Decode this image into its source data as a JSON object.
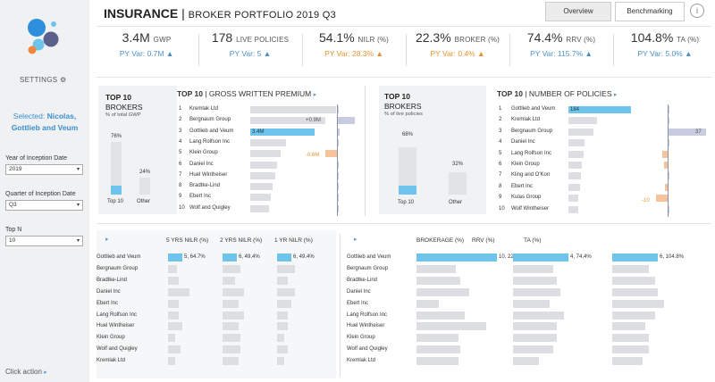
{
  "sidebar": {
    "settings_label": "SETTINGS",
    "selected_label": "Selected:",
    "selected_value": "Nicolas, Gottlieb and Veum",
    "filters": [
      {
        "label": "Year of Inception Date",
        "value": "2019"
      },
      {
        "label": "Quarter of Inception Date",
        "value": "Q3"
      },
      {
        "label": "Top N",
        "value": "10"
      }
    ],
    "click_action": "Click action"
  },
  "header": {
    "title": "INSURANCE",
    "separator": "|",
    "subtitle": "BROKER PORTFOLIO 2019 Q3",
    "overview_label": "Overview",
    "benchmarking_label": "Benchmarking",
    "info_symbol": "i"
  },
  "kpis": [
    {
      "value": "3.4M",
      "unit": "GWP",
      "var": "PY Var: 0.7M",
      "color": "#4a90c8"
    },
    {
      "value": "178",
      "unit": "LIVE POLICIES",
      "var": "PY Var: 5",
      "color": "#4a90c8"
    },
    {
      "value": "54.1%",
      "unit": "NILR (%)",
      "var": "PY Var: 28.3%",
      "color": "#e8922e"
    },
    {
      "value": "22.3%",
      "unit": "BROKER (%)",
      "var": "PY Var: 0.4%",
      "color": "#e8922e"
    },
    {
      "value": "74.4%",
      "unit": "RRV (%)",
      "var": "PY Var: 115.7%",
      "color": "#4a90c8"
    },
    {
      "value": "104.8%",
      "unit": "TA (%)",
      "var": "PY Var: 5.0%",
      "color": "#4a90c8"
    }
  ],
  "top10_gwp": {
    "title": "TOP 10",
    "title2": "BROKERS",
    "sub": "% of total GWP",
    "top_pct": "76%",
    "other_pct": "24%",
    "top_value": 0.76,
    "other_value": 0.24,
    "top_label": "Top 10",
    "other_label": "Other"
  },
  "top10_policies": {
    "title": "TOP 10",
    "title2": "BROKERS",
    "sub": "% of live policies",
    "top_pct": "68%",
    "other_pct": "32%",
    "top_value": 0.68,
    "other_value": 0.32,
    "top_label": "Top 10",
    "other_label": "Other"
  },
  "gwp_chart": {
    "title_bold": "TOP 10",
    "title_rest": "GROSS WRITTEN PREMIUM",
    "highlight_label": "3.4M",
    "plus_label": "+0.9M",
    "minus_label": "-0.6M",
    "rows": [
      {
        "rank": "1",
        "name": "Kremlak Ltd",
        "value": 1.0,
        "var": 0.06
      },
      {
        "rank": "2",
        "name": "Bergnaum Group",
        "value": 0.88,
        "var": 0.9
      },
      {
        "rank": "3",
        "name": "Gottlieb and Veum",
        "value": 0.75,
        "var": 0.12,
        "highlight": true
      },
      {
        "rank": "4",
        "name": "Lang Rolfson Inc",
        "value": 0.42,
        "var": 0.06
      },
      {
        "rank": "5",
        "name": "Klein Group",
        "value": 0.35,
        "var": -0.6
      },
      {
        "rank": "6",
        "name": "Daniel Inc",
        "value": 0.31,
        "var": 0.05
      },
      {
        "rank": "7",
        "name": "Huel Wintheiser",
        "value": 0.29,
        "var": 0.08
      },
      {
        "rank": "8",
        "name": "Bradtke-Lind",
        "value": 0.26,
        "var": 0.05
      },
      {
        "rank": "9",
        "name": "Ebert Inc",
        "value": 0.24,
        "var": 0.04
      },
      {
        "rank": "10",
        "name": "Wolf and Quigley",
        "value": 0.22,
        "var": 0.04
      }
    ]
  },
  "policies_chart": {
    "title_bold": "TOP 10",
    "title_rest": "NUMBER OF POLICIES",
    "highlight_label": "184",
    "plus_label": "37",
    "minus_label": "-10",
    "rows": [
      {
        "rank": "1",
        "name": "Gottlieb and Veum",
        "value": 1.0,
        "var": 0.05,
        "highlight": true
      },
      {
        "rank": "2",
        "name": "Kremlak Ltd",
        "value": 0.46,
        "var": 0.05
      },
      {
        "rank": "3",
        "name": "Bergnaum Group",
        "value": 0.4,
        "var": 1.0
      },
      {
        "rank": "4",
        "name": "Daniel Inc",
        "value": 0.26,
        "var": 0.05
      },
      {
        "rank": "5",
        "name": "Lang Rolfson Inc",
        "value": 0.24,
        "var": -0.15
      },
      {
        "rank": "6",
        "name": "Klein Group",
        "value": 0.22,
        "var": -0.1
      },
      {
        "rank": "7",
        "name": "Kling and O'Kon",
        "value": 0.2,
        "var": 0.05
      },
      {
        "rank": "8",
        "name": "Ebert Inc",
        "value": 0.18,
        "var": -0.08
      },
      {
        "rank": "9",
        "name": "Kulas Group",
        "value": 0.16,
        "var": -0.3
      },
      {
        "rank": "10",
        "name": "Wolf Wintheiser",
        "value": 0.15,
        "var": 0.05
      }
    ]
  },
  "nilr_table": {
    "arrow": "▸",
    "col1": "5 YRS NILR (%)",
    "col2": "2 YRS NILR (%)",
    "col3": "1 YR NILR (%)",
    "labels": [
      "5, 64.7%",
      "6, 49.4%",
      "6, 49.4%"
    ],
    "rows": [
      {
        "name": "Gottlieb and Veum",
        "v": [
          0.4,
          0.4,
          0.4
        ],
        "highlight": true
      },
      {
        "name": "Bergnaum Group",
        "v": [
          0.25,
          0.5,
          0.5
        ]
      },
      {
        "name": "Bradtke-Lind",
        "v": [
          0.3,
          0.35,
          0.3
        ]
      },
      {
        "name": "Daniel Inc",
        "v": [
          0.6,
          0.6,
          0.5
        ]
      },
      {
        "name": "Ebert Inc",
        "v": [
          0.3,
          0.45,
          0.4
        ]
      },
      {
        "name": "Lang Rolfson Inc",
        "v": [
          0.3,
          0.6,
          0.3
        ]
      },
      {
        "name": "Huel Wintheiser",
        "v": [
          0.4,
          0.45,
          0.3
        ]
      },
      {
        "name": "Klein Group",
        "v": [
          0.2,
          0.5,
          0.2
        ]
      },
      {
        "name": "Wolf and Quigley",
        "v": [
          0.35,
          0.5,
          0.3
        ]
      },
      {
        "name": "Kremlak Ltd",
        "v": [
          0.2,
          0.45,
          0.2
        ]
      }
    ]
  },
  "ratio_table": {
    "arrow": "▸",
    "col1": "BROKERAGE (%)",
    "col2": "RRV (%)",
    "col3": "TA (%)",
    "labels": [
      "10, 22.3%",
      "4, 74.4%",
      "6, 104.8%"
    ],
    "rows": [
      {
        "name": "Gottlieb and Veum",
        "v": [
          0.92,
          0.75,
          0.75
        ],
        "highlight": true
      },
      {
        "name": "Bergnaum Group",
        "v": [
          0.45,
          0.55,
          0.6
        ]
      },
      {
        "name": "Bradtke-Lind",
        "v": [
          0.5,
          0.6,
          0.7
        ]
      },
      {
        "name": "Daniel Inc",
        "v": [
          0.6,
          0.65,
          0.75
        ]
      },
      {
        "name": "Ebert Inc",
        "v": [
          0.25,
          0.5,
          0.85
        ]
      },
      {
        "name": "Lang Rolfson Inc",
        "v": [
          0.55,
          0.7,
          0.7
        ]
      },
      {
        "name": "Huel Wintheiser",
        "v": [
          0.8,
          0.6,
          0.55
        ]
      },
      {
        "name": "Klein Group",
        "v": [
          0.48,
          0.6,
          0.6
        ]
      },
      {
        "name": "Wolf and Quigley",
        "v": [
          0.5,
          0.55,
          0.6
        ]
      },
      {
        "name": "Kremlak Ltd",
        "v": [
          0.48,
          0.35,
          0.5
        ]
      }
    ]
  },
  "colors": {
    "accent": "#6ec4ea",
    "bar": "#dcdee2",
    "neg": "#f6c49a",
    "posvar": "#c9cbe0"
  }
}
